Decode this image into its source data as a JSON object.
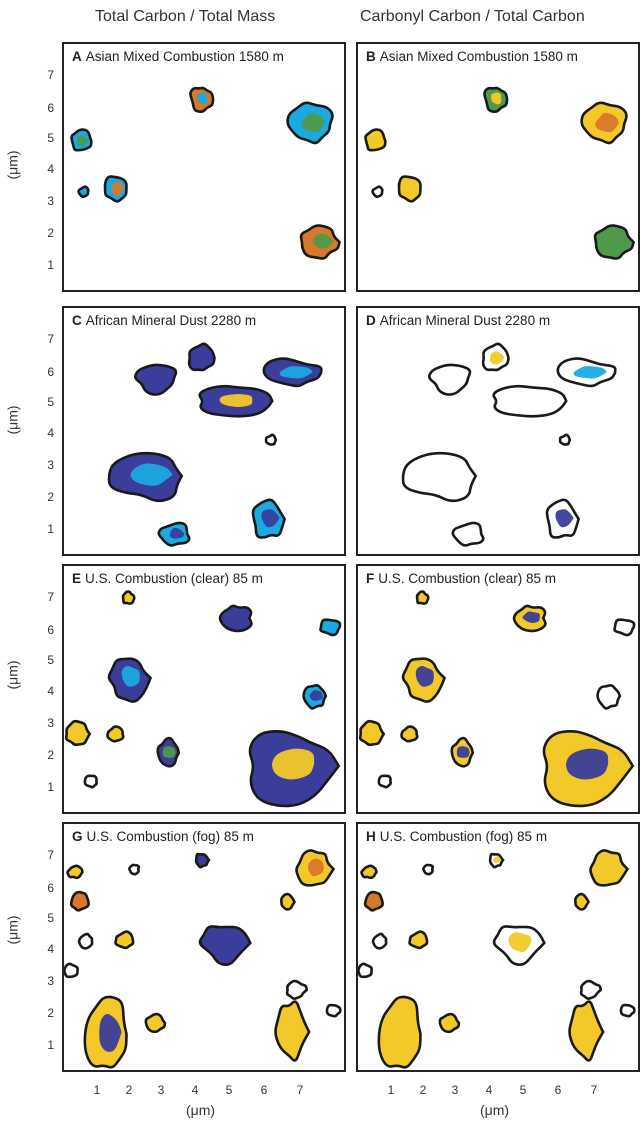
{
  "column_headers": [
    "Total Carbon / Total Mass",
    "Carbonyl Carbon / Total Carbon"
  ],
  "y_axis_label": "(μm)",
  "x_axis_label": "(μm)",
  "y_ticks": [
    "7",
    "6",
    "5",
    "4",
    "3",
    "2",
    "1"
  ],
  "x_ticks": [
    "1",
    "2",
    "3",
    "4",
    "5",
    "6",
    "7"
  ],
  "panels": [
    {
      "letter": "A",
      "title": "Asian Mixed Combustion 1580 m"
    },
    {
      "letter": "B",
      "title": "Asian Mixed Combustion 1580 m"
    },
    {
      "letter": "C",
      "title": "African Mineral Dust 2280 m"
    },
    {
      "letter": "D",
      "title": "African Mineral Dust 2280 m"
    },
    {
      "letter": "E",
      "title": "U.S. Combustion (clear) 85 m"
    },
    {
      "letter": "F",
      "title": "U.S. Combustion (clear) 85 m"
    },
    {
      "letter": "G",
      "title": "U.S. Combustion (fog) 85 m"
    },
    {
      "letter": "H",
      "title": "U.S. Combustion (fog) 85 m"
    }
  ],
  "colors": {
    "outline": "#1a1a1a",
    "cyan": "#1aa9e0",
    "navy": "#3a3d9a",
    "yellow": "#f2c928",
    "orange": "#d9782a",
    "green": "#4e9a4a"
  }
}
